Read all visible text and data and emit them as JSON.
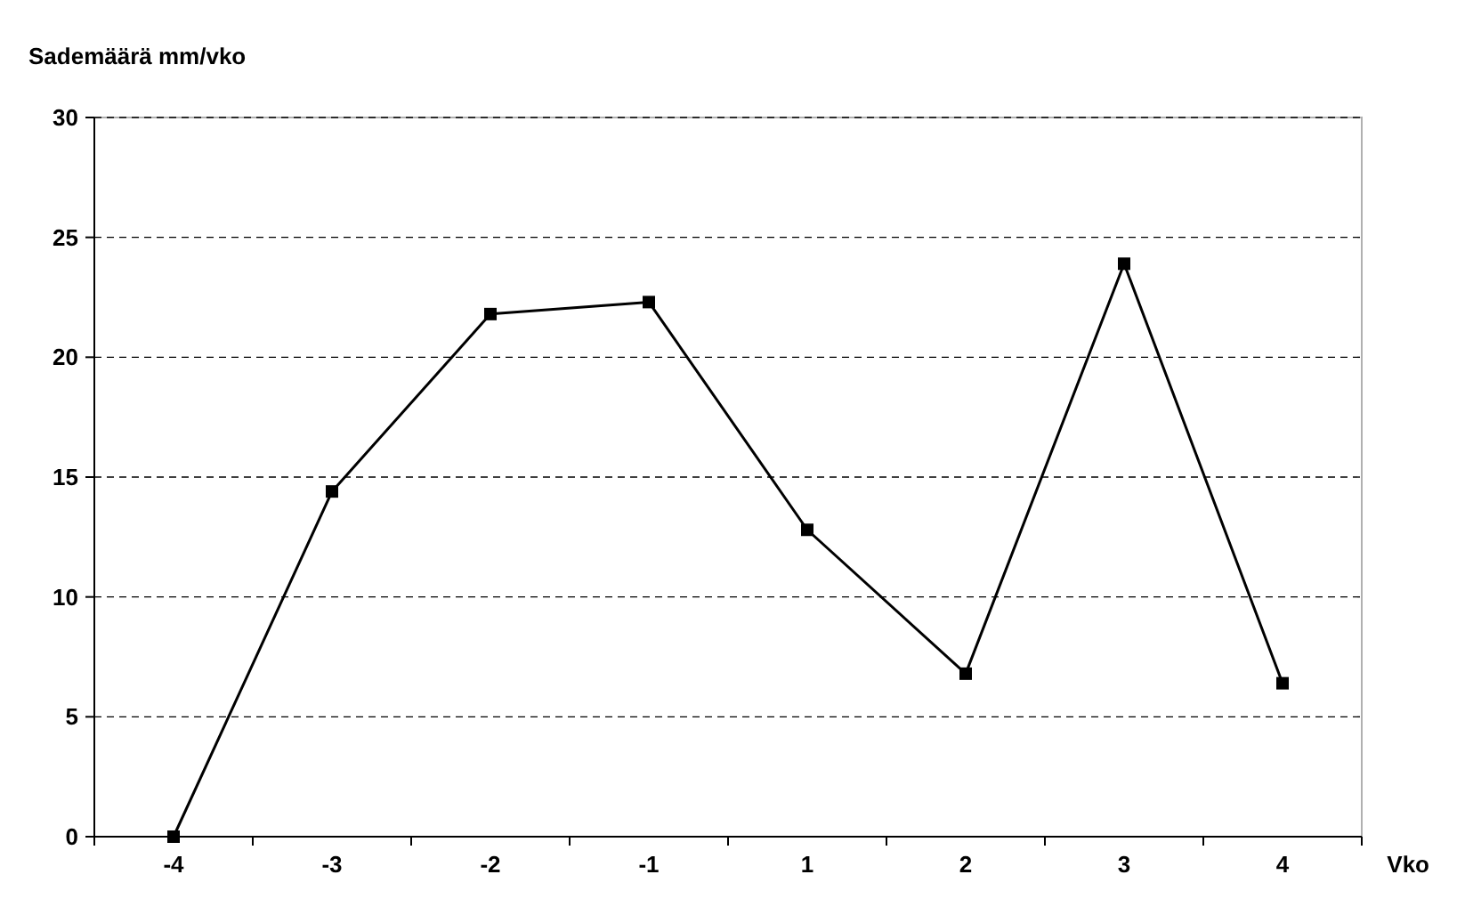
{
  "chart_data": {
    "type": "line",
    "ylabel": "Sademäärä mm/vko",
    "xlabel": "Vko",
    "categories": [
      "-4",
      "-3",
      "-2",
      "-1",
      "1",
      "2",
      "3",
      "4"
    ],
    "series": [
      {
        "color": "#000000",
        "values": [
          0,
          14.4,
          21.8,
          22.3,
          12.8,
          6.8,
          23.9,
          6.4
        ]
      }
    ],
    "ylim": [
      0,
      30
    ],
    "yticks": [
      0,
      5,
      10,
      15,
      20,
      25,
      30
    ],
    "grid": "y",
    "marker": "square",
    "line_style": "solid"
  }
}
